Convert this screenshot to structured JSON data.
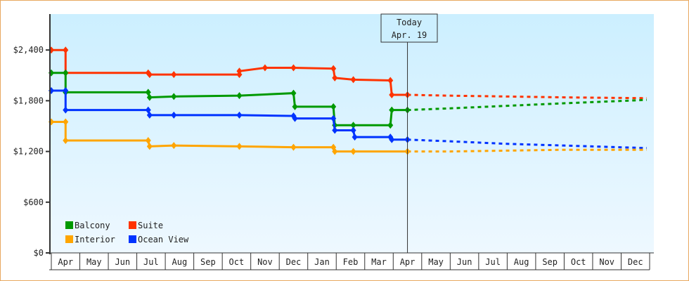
{
  "chart_data": {
    "type": "line",
    "title": "",
    "xlabel": "",
    "ylabel": "",
    "ylim": [
      0,
      2800
    ],
    "y_ticks": [
      "$0",
      "$600",
      "$1,200",
      "$1,800",
      "$2,400"
    ],
    "y_tick_values": [
      0,
      600,
      1200,
      1800,
      2400
    ],
    "x_tick_labels": [
      "Apr",
      "May",
      "Jun",
      "Jul",
      "Aug",
      "Sep",
      "Oct",
      "Nov",
      "Dec",
      "Jan",
      "Feb",
      "Mar",
      "Apr",
      "May",
      "Jun",
      "Jul",
      "Aug",
      "Sep",
      "Oct",
      "Nov",
      "Dec"
    ],
    "today_marker": {
      "line1": "Today",
      "line2": "Apr. 19"
    },
    "legend": [
      "Balcony",
      "Suite",
      "Interior",
      "Ocean View"
    ],
    "series": [
      {
        "name": "Suite",
        "color": "#ff3300",
        "step_points": [
          [
            0,
            2400
          ],
          [
            0.5,
            2400
          ],
          [
            0.5,
            2130
          ],
          [
            3.4,
            2130
          ],
          [
            3.45,
            2110
          ],
          [
            4.3,
            2110
          ],
          [
            6.6,
            2110
          ],
          [
            6.6,
            2150
          ],
          [
            7.5,
            2190
          ],
          [
            8.5,
            2190
          ],
          [
            9.9,
            2180
          ],
          [
            9.95,
            2070
          ],
          [
            10.6,
            2050
          ],
          [
            11.9,
            2040
          ],
          [
            11.95,
            1870
          ],
          [
            12.5,
            1870
          ]
        ],
        "forecast": [
          [
            12.5,
            1870
          ],
          [
            14,
            1860
          ],
          [
            16,
            1850
          ],
          [
            18,
            1840
          ],
          [
            20.9,
            1830
          ]
        ]
      },
      {
        "name": "Balcony",
        "color": "#009900",
        "step_points": [
          [
            0,
            2130
          ],
          [
            0.5,
            2130
          ],
          [
            0.5,
            1900
          ],
          [
            3.4,
            1900
          ],
          [
            3.45,
            1840
          ],
          [
            4.3,
            1850
          ],
          [
            6.6,
            1860
          ],
          [
            8.5,
            1890
          ],
          [
            8.55,
            1730
          ],
          [
            9.9,
            1730
          ],
          [
            9.95,
            1510
          ],
          [
            10.6,
            1510
          ],
          [
            11.9,
            1510
          ],
          [
            11.95,
            1690
          ],
          [
            12.5,
            1690
          ]
        ],
        "forecast": [
          [
            12.5,
            1690
          ],
          [
            14,
            1710
          ],
          [
            16,
            1740
          ],
          [
            18,
            1770
          ],
          [
            20.9,
            1810
          ]
        ]
      },
      {
        "name": "Ocean View",
        "color": "#0033ff",
        "step_points": [
          [
            0,
            1920
          ],
          [
            0.5,
            1920
          ],
          [
            0.5,
            1690
          ],
          [
            3.4,
            1690
          ],
          [
            3.45,
            1630
          ],
          [
            4.3,
            1630
          ],
          [
            6.6,
            1630
          ],
          [
            8.5,
            1620
          ],
          [
            8.55,
            1590
          ],
          [
            9.9,
            1590
          ],
          [
            9.95,
            1450
          ],
          [
            10.6,
            1450
          ],
          [
            10.65,
            1370
          ],
          [
            11.9,
            1370
          ],
          [
            11.95,
            1340
          ],
          [
            12.5,
            1340
          ]
        ],
        "forecast": [
          [
            12.5,
            1340
          ],
          [
            14,
            1320
          ],
          [
            16,
            1290
          ],
          [
            18,
            1270
          ],
          [
            20.9,
            1240
          ]
        ]
      },
      {
        "name": "Interior",
        "color": "#ffa500",
        "step_points": [
          [
            0,
            1550
          ],
          [
            0.5,
            1550
          ],
          [
            0.5,
            1330
          ],
          [
            3.4,
            1330
          ],
          [
            3.45,
            1260
          ],
          [
            4.3,
            1270
          ],
          [
            6.6,
            1260
          ],
          [
            8.5,
            1250
          ],
          [
            9.9,
            1250
          ],
          [
            9.95,
            1200
          ],
          [
            10.6,
            1200
          ],
          [
            12.5,
            1200
          ]
        ],
        "forecast": [
          [
            12.5,
            1200
          ],
          [
            14,
            1200
          ],
          [
            16,
            1210
          ],
          [
            18,
            1220
          ],
          [
            20.9,
            1220
          ]
        ]
      }
    ]
  }
}
